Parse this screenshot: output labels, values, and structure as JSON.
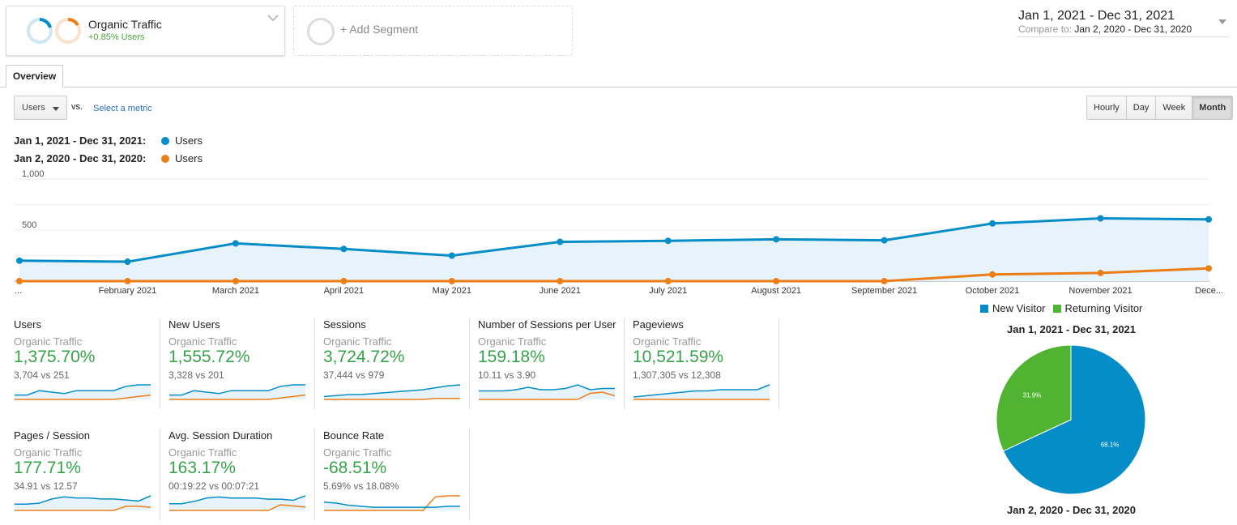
{
  "segments": {
    "primary": {
      "name": "Organic Traffic",
      "sub": "+0.85% Users"
    },
    "add_label": "+ Add Segment"
  },
  "date_range": {
    "main": "Jan 1, 2021 - Dec 31, 2021",
    "compare_label": "Compare to:",
    "compare_value": "Jan 2, 2020 - Dec 31, 2020"
  },
  "tabs": {
    "overview": "Overview"
  },
  "controls": {
    "metric": "Users",
    "vs": "vs.",
    "select_metric": "Select a metric",
    "time_buttons": [
      "Hourly",
      "Day",
      "Week",
      "Month"
    ],
    "active_time": "Month"
  },
  "legend": [
    {
      "range": "Jan 1, 2021 - Dec 31, 2021:",
      "metric": "Users",
      "color": "#058dc7"
    },
    {
      "range": "Jan 2, 2020 - Dec 31, 2020:",
      "metric": "Users",
      "color": "#ed7e17"
    }
  ],
  "chart_data": {
    "type": "line",
    "title": "",
    "categories": [
      "...",
      "February 2021",
      "March 2021",
      "April 2021",
      "May 2021",
      "June 2021",
      "July 2021",
      "August 2021",
      "September 2021",
      "October 2021",
      "November 2021",
      "Dece..."
    ],
    "ylim": [
      0,
      1000
    ],
    "yticks": [
      "1,000",
      "500"
    ],
    "ytick_values": [
      1000,
      500
    ],
    "series": [
      {
        "name": "Users (Jan 1, 2021 - Dec 31, 2021)",
        "color": "#058dc7",
        "values": [
          200,
          190,
          370,
          315,
          250,
          385,
          395,
          410,
          400,
          565,
          615,
          605
        ]
      },
      {
        "name": "Users (Jan 2, 2020 - Dec 31, 2020)",
        "color": "#ed7e17",
        "values": [
          0,
          0,
          0,
          0,
          0,
          0,
          0,
          0,
          0,
          65,
          80,
          125
        ]
      }
    ]
  },
  "scorecards": [
    {
      "title": "Users",
      "segment": "Organic Traffic",
      "pct": "1,375.70%",
      "vs": "3,704 vs 251",
      "spark_a": [
        3,
        3,
        6,
        5,
        4,
        6,
        6,
        6,
        6,
        9,
        10,
        10
      ],
      "spark_b": [
        0,
        0,
        0,
        0,
        0,
        0,
        0,
        0,
        0,
        1,
        2,
        3
      ]
    },
    {
      "title": "New Users",
      "segment": "Organic Traffic",
      "pct": "1,555.72%",
      "vs": "3,328 vs 201",
      "spark_a": [
        3,
        3,
        6,
        5,
        4,
        6,
        6,
        6,
        6,
        9,
        10,
        10
      ],
      "spark_b": [
        0,
        0,
        0,
        0,
        0,
        0,
        0,
        0,
        0,
        1,
        2,
        3
      ]
    },
    {
      "title": "Sessions",
      "segment": "Organic Traffic",
      "pct": "3,724.72%",
      "vs": "37,444 vs 979",
      "spark_a": [
        3,
        4,
        5,
        5,
        6,
        7,
        8,
        9,
        10,
        12,
        14,
        15
      ],
      "spark_b": [
        0,
        0,
        0,
        0,
        0,
        0,
        0,
        0,
        0,
        1,
        1,
        1
      ]
    },
    {
      "title": "Number of Sessions per User",
      "segment": "Organic Traffic",
      "pct": "159.18%",
      "vs": "10.11 vs 3.90",
      "spark_a": [
        7,
        7,
        7,
        8,
        10,
        8,
        8,
        9,
        12,
        8,
        9,
        9
      ],
      "spark_b": [
        0,
        0,
        0,
        0,
        0,
        0,
        0,
        0,
        0,
        5,
        6,
        3
      ]
    },
    {
      "title": "Pageviews",
      "segment": "Organic Traffic",
      "pct": "10,521.59%",
      "vs": "1,307,305 vs 12,308",
      "spark_a": [
        2,
        3,
        4,
        5,
        6,
        7,
        7,
        8,
        8,
        8,
        8,
        12
      ],
      "spark_b": [
        0,
        0,
        0,
        0,
        0,
        0,
        0,
        0,
        0,
        0,
        0,
        0
      ]
    },
    {
      "title": "Pages / Session",
      "segment": "Organic Traffic",
      "pct": "177.71%",
      "vs": "34.91 vs 12.57",
      "spark_a": [
        6,
        6,
        7,
        11,
        13,
        12,
        12,
        11,
        11,
        10,
        9,
        14
      ],
      "spark_b": [
        0,
        0,
        0,
        0,
        0,
        0,
        0,
        0,
        0,
        4,
        4,
        3
      ]
    },
    {
      "title": "Avg. Session Duration",
      "segment": "Organic Traffic",
      "pct": "163.17%",
      "vs": "00:19:22 vs 00:07:21",
      "spark_a": [
        6,
        6,
        8,
        11,
        12,
        11,
        11,
        11,
        10,
        10,
        9,
        13
      ],
      "spark_b": [
        0,
        0,
        0,
        0,
        0,
        0,
        0,
        0,
        0,
        5,
        4,
        3
      ]
    },
    {
      "title": "Bounce Rate",
      "segment": "Organic Traffic",
      "pct": "-68.51%",
      "vs": "5.69% vs 18.08%",
      "spark_a": [
        8,
        7,
        5,
        4,
        3,
        3,
        3,
        3,
        3,
        3,
        4,
        4
      ],
      "spark_b": [
        0,
        0,
        0,
        0,
        0,
        0,
        0,
        0,
        0,
        13,
        14,
        14
      ]
    }
  ],
  "pie": {
    "legend": [
      {
        "label": "New Visitor",
        "color": "#058dc7"
      },
      {
        "label": "Returning Visitor",
        "color": "#50b432"
      }
    ],
    "title_top": "Jan 1, 2021 - Dec 31, 2021",
    "title_bottom": "Jan 2, 2020 - Dec 31, 2020",
    "slices": [
      {
        "label": "New Visitor",
        "value": 68.1,
        "text": "68.1%"
      },
      {
        "label": "Returning Visitor",
        "value": 31.9,
        "text": "31.9%"
      }
    ]
  }
}
